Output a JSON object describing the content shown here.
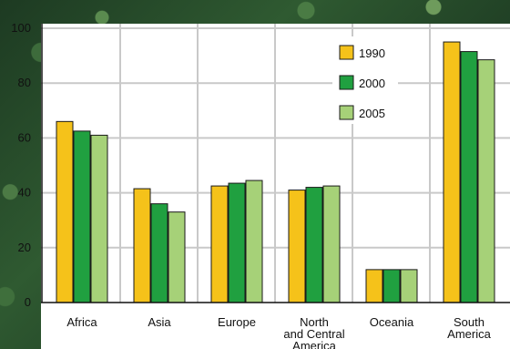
{
  "chart_data": {
    "type": "bar",
    "title": "",
    "xlabel": "",
    "ylabel": "",
    "ylim": [
      0,
      100
    ],
    "yticks": [
      "0",
      "20",
      "40",
      "60",
      "80",
      "100"
    ],
    "grid": true,
    "legend_position": "top-right",
    "categories": [
      [
        "Africa"
      ],
      [
        "Asia"
      ],
      [
        "Europe"
      ],
      [
        "North",
        "and Central",
        "America"
      ],
      [
        "Oceania"
      ],
      [
        "South",
        "America"
      ]
    ],
    "series": [
      {
        "name": "1990",
        "color": "#f5c21a",
        "values": [
          66,
          41.5,
          42.5,
          41,
          12,
          95
        ]
      },
      {
        "name": "2000",
        "color": "#20a040",
        "values": [
          62.5,
          36,
          43.5,
          42,
          12,
          91.5
        ]
      },
      {
        "name": "2005",
        "color": "#a6d178",
        "values": [
          61,
          33,
          44.5,
          42.5,
          12,
          88.5
        ]
      }
    ]
  }
}
